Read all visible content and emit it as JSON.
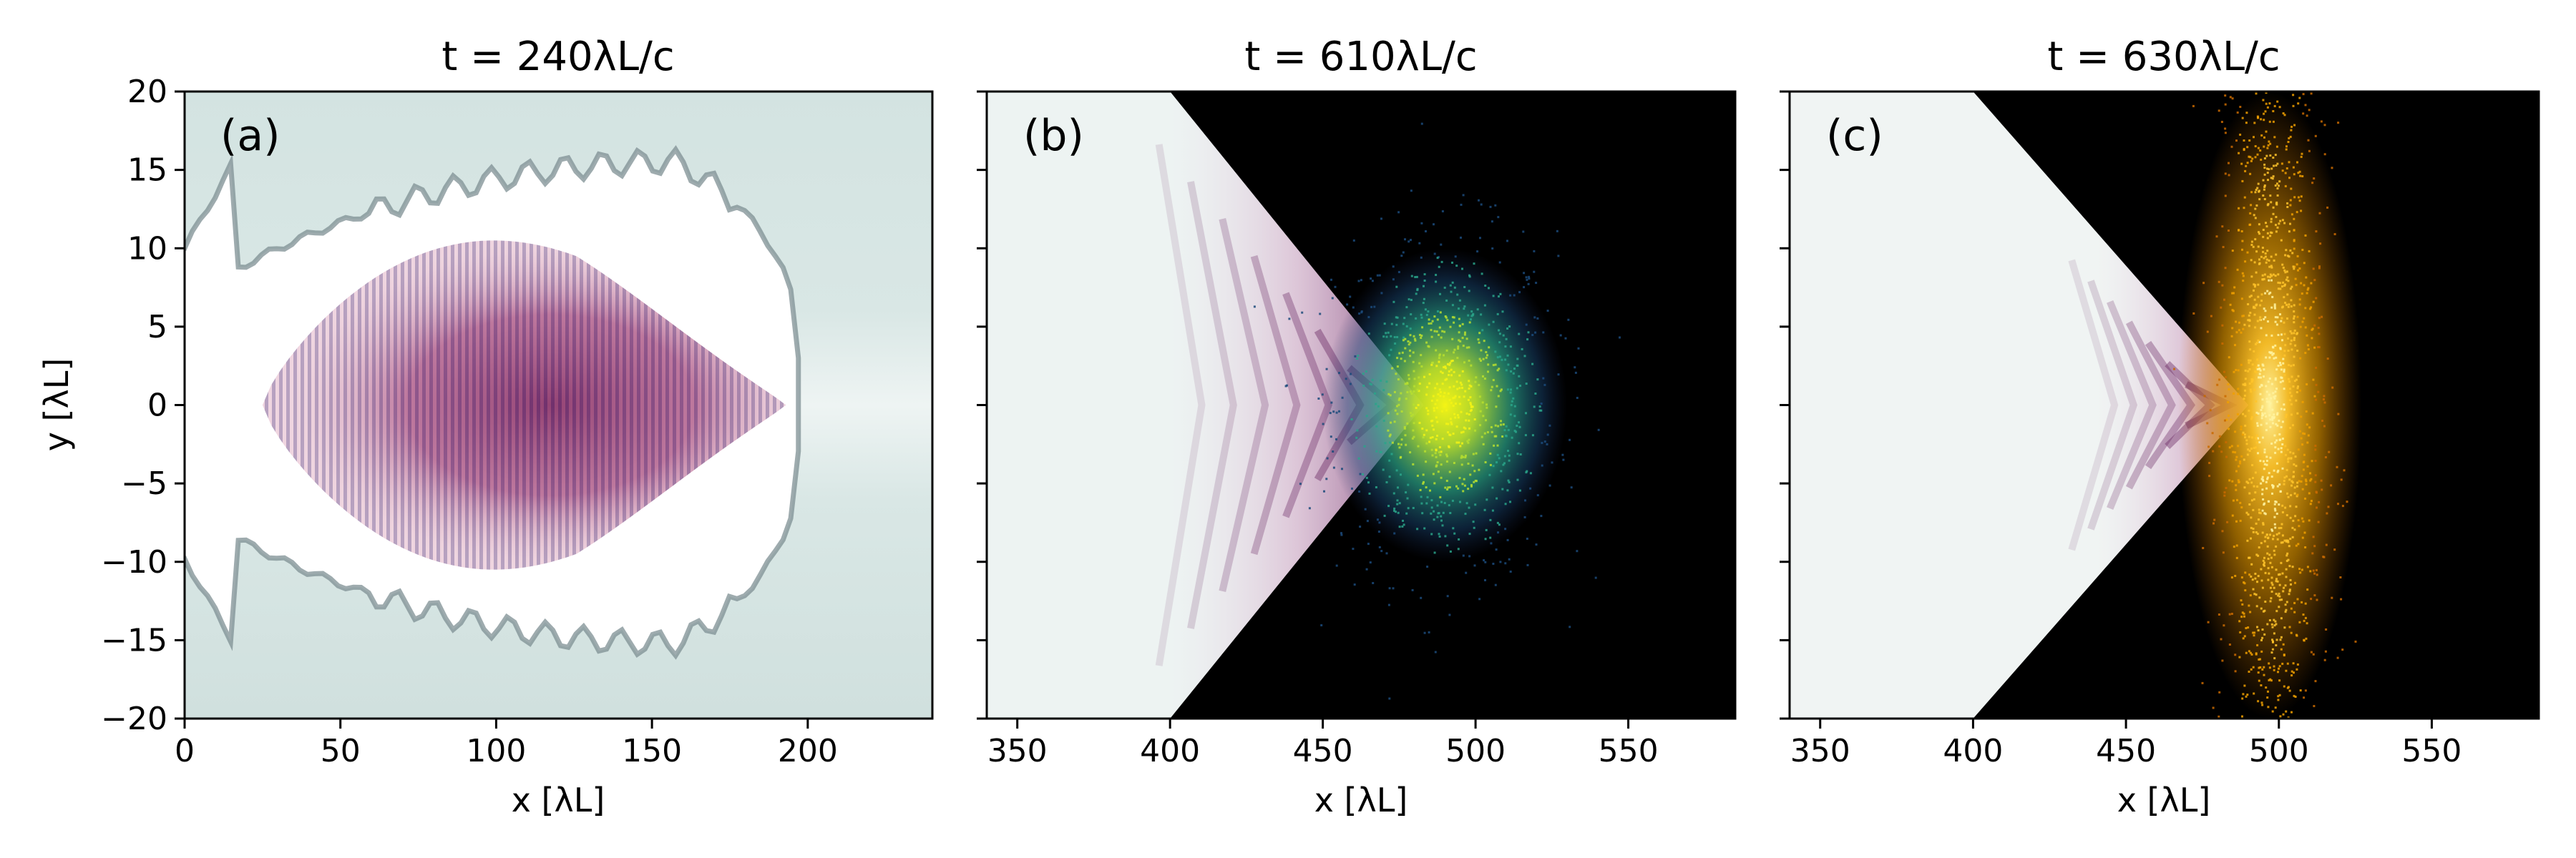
{
  "chart_data": [
    {
      "type": "heatmap",
      "panel_label": "(a)",
      "title": "t = 240λL/c",
      "xlabel": "x [λL]",
      "ylabel": "y [λL]",
      "xlim": [
        0,
        240
      ],
      "ylim": [
        -20,
        20
      ],
      "xticks": [
        0,
        50,
        100,
        150,
        200
      ],
      "yticks": [
        -20,
        -15,
        -10,
        -5,
        0,
        5,
        10,
        15,
        20
      ],
      "show_ytick_labels": true,
      "background": "#d6e5e3",
      "cavity": {
        "x_front": 197,
        "x_back": 0,
        "half_width": 15.5
      },
      "laser_pulse": {
        "x_start": 25,
        "x_end": 193,
        "x_peak": 120,
        "half_width": 10.5,
        "color": "#8a2d6a"
      },
      "field_color": "#8a2d6a",
      "grid": false
    },
    {
      "type": "heatmap",
      "panel_label": "(b)",
      "title": "t = 610λL/c",
      "xlabel": "x [λL]",
      "ylabel": "",
      "xlim": [
        340,
        585
      ],
      "ylim": [
        -20,
        20
      ],
      "xticks": [
        350,
        400,
        450,
        500,
        550
      ],
      "yticks": [
        -20,
        -15,
        -10,
        -5,
        0,
        5,
        10,
        15,
        20
      ],
      "show_ytick_labels": false,
      "background": "#000000",
      "plasma_color": "#e9f1f0",
      "cone": {
        "x_base": 400,
        "x_tip": 483,
        "half_width_at_base": 20
      },
      "laser_pulse": {
        "x_start": 400,
        "x_end": 483,
        "half_width": 20,
        "color": "#8a2d6a"
      },
      "electron_cloud": {
        "x_center": 490,
        "y_center": 0,
        "x_half_width": 40,
        "y_half_width": 10,
        "colors": [
          "#1b4a7a",
          "#2aa58a",
          "#b7df2f",
          "#f3f315"
        ]
      },
      "grid": false
    },
    {
      "type": "heatmap",
      "panel_label": "(c)",
      "title": "t = 630λL/c",
      "xlabel": "x [λL]",
      "ylabel": "",
      "xlim": [
        340,
        585
      ],
      "ylim": [
        -20,
        20
      ],
      "xticks": [
        350,
        400,
        450,
        500,
        550
      ],
      "yticks": [
        -20,
        -15,
        -10,
        -5,
        0,
        5,
        10,
        15,
        20
      ],
      "show_ytick_labels": false,
      "background": "#000000",
      "plasma_color": "#eef3f2",
      "cone": {
        "x_base": 400,
        "x_tip": 490,
        "half_width_at_base": 20
      },
      "laser_pulse": {
        "x_start": 440,
        "x_end": 490,
        "half_width": 20,
        "color": "#8a2d6a"
      },
      "electron_cloud": {
        "x_center": 497,
        "y_center": 0,
        "x_half_width": 30,
        "y_half_width": 20,
        "colors": [
          "#c96a00",
          "#f0a000",
          "#ffc42a",
          "#fff3a0"
        ]
      },
      "grid": false
    }
  ]
}
